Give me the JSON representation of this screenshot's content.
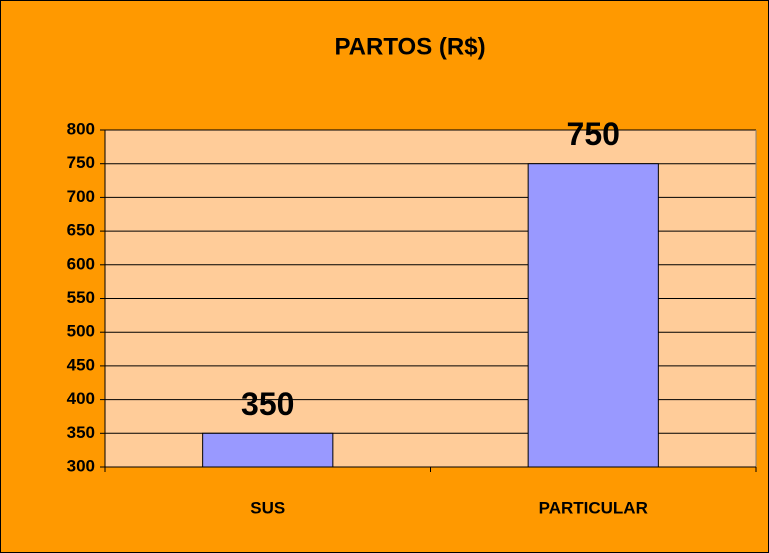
{
  "chart_data": {
    "type": "bar",
    "title": "PARTOS (R$)",
    "categories": [
      "SUS",
      "PARTICULAR"
    ],
    "values": [
      350,
      750
    ],
    "color": "#9999ff",
    "ylim": [
      300,
      800
    ],
    "yticks": [
      300,
      350,
      400,
      450,
      500,
      550,
      600,
      650,
      700,
      750,
      800
    ],
    "grid": true
  }
}
